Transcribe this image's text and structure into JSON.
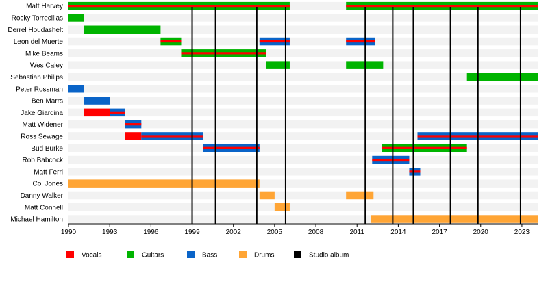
{
  "chart_data": {
    "type": "timeline",
    "title": "",
    "xlim": [
      1990,
      2024.2
    ],
    "x_ticks": [
      1990,
      1993,
      1996,
      1999,
      2002,
      2005,
      2008,
      2011,
      2014,
      2017,
      2020,
      2023
    ],
    "grid": "alternating row bands",
    "legend_position": "bottom",
    "colors": {
      "vocals": "#ff0000",
      "guitars": "#00b400",
      "bass": "#0a64c8",
      "drums": "#ffa535",
      "studio_album": "#000000",
      "band_light": "#f2f2f2"
    },
    "legend": [
      {
        "key": "vocals",
        "label": "Vocals"
      },
      {
        "key": "guitars",
        "label": "Guitars"
      },
      {
        "key": "bass",
        "label": "Bass"
      },
      {
        "key": "drums",
        "label": "Drums"
      },
      {
        "key": "studio_album",
        "label": "Studio album"
      }
    ],
    "studio_albums": [
      1999.0,
      2000.7,
      2003.7,
      2005.8,
      2011.6,
      2013.6,
      2015.1,
      2017.8,
      2019.8,
      2022.9
    ],
    "members": [
      {
        "name": "Matt Harvey",
        "spans": [
          {
            "role": "guitars",
            "accent": "vocals",
            "start": 1990,
            "end": 2006.1
          },
          {
            "role": "guitars",
            "accent": "vocals",
            "start": 2010.2,
            "end": 2024.2
          }
        ]
      },
      {
        "name": "Rocky Torrecillas",
        "spans": [
          {
            "role": "guitars",
            "start": 1990,
            "end": 1991.1
          }
        ]
      },
      {
        "name": "Derrel Houdashelt",
        "spans": [
          {
            "role": "guitars",
            "start": 1991.1,
            "end": 1996.7
          }
        ]
      },
      {
        "name": "Leon del Muerte",
        "spans": [
          {
            "role": "guitars",
            "accent": "vocals",
            "start": 1996.7,
            "end": 1998.2
          },
          {
            "role": "bass",
            "accent": "vocals",
            "start": 2003.9,
            "end": 2006.1
          },
          {
            "role": "bass",
            "accent": "vocals",
            "start": 2010.2,
            "end": 2012.3
          }
        ]
      },
      {
        "name": "Mike Beams",
        "spans": [
          {
            "role": "guitars",
            "accent": "vocals",
            "start": 1998.2,
            "end": 2004.4
          }
        ]
      },
      {
        "name": "Wes Caley",
        "spans": [
          {
            "role": "guitars",
            "start": 2004.4,
            "end": 2006.1
          },
          {
            "role": "guitars",
            "start": 2010.2,
            "end": 2012.9
          }
        ]
      },
      {
        "name": "Sebastian Philips",
        "spans": [
          {
            "role": "guitars",
            "start": 2019.0,
            "end": 2024.2
          }
        ]
      },
      {
        "name": "Peter Rossman",
        "spans": [
          {
            "role": "bass",
            "start": 1990,
            "end": 1991.1
          }
        ]
      },
      {
        "name": "Ben Marrs",
        "spans": [
          {
            "role": "bass",
            "start": 1991.1,
            "end": 1993.0
          }
        ]
      },
      {
        "name": "Jake Giardina",
        "spans": [
          {
            "role": "vocals",
            "start": 1991.1,
            "end": 1993.0
          },
          {
            "role": "bass",
            "accent": "vocals",
            "start": 1993.0,
            "end": 1994.1
          }
        ]
      },
      {
        "name": "Matt Widener",
        "spans": [
          {
            "role": "bass",
            "accent": "vocals",
            "start": 1994.1,
            "end": 1995.3
          }
        ]
      },
      {
        "name": "Ross Sewage",
        "spans": [
          {
            "role": "vocals",
            "start": 1994.1,
            "end": 1995.3
          },
          {
            "role": "bass",
            "accent": "vocals",
            "start": 1995.3,
            "end": 1999.8
          },
          {
            "role": "bass",
            "accent": "vocals",
            "start": 2015.4,
            "end": 2024.2
          }
        ]
      },
      {
        "name": "Bud Burke",
        "spans": [
          {
            "role": "bass",
            "accent": "vocals",
            "start": 1999.8,
            "end": 2003.9
          },
          {
            "role": "guitars",
            "accent": "vocals",
            "start": 2012.8,
            "end": 2019.0
          }
        ]
      },
      {
        "name": "Rob Babcock",
        "spans": [
          {
            "role": "bass",
            "accent": "vocals",
            "start": 2012.1,
            "end": 2014.8
          }
        ]
      },
      {
        "name": "Matt Ferri",
        "spans": [
          {
            "role": "bass",
            "accent": "vocals",
            "start": 2014.8,
            "end": 2015.6
          }
        ]
      },
      {
        "name": "Col Jones",
        "spans": [
          {
            "role": "drums",
            "start": 1990,
            "end": 2003.9
          }
        ]
      },
      {
        "name": "Danny Walker",
        "spans": [
          {
            "role": "drums",
            "start": 2003.9,
            "end": 2005.0
          },
          {
            "role": "drums",
            "start": 2010.2,
            "end": 2012.2
          }
        ]
      },
      {
        "name": "Matt Connell",
        "spans": [
          {
            "role": "drums",
            "start": 2005.0,
            "end": 2006.1
          }
        ]
      },
      {
        "name": "Michael Hamilton",
        "spans": [
          {
            "role": "drums",
            "start": 2012.0,
            "end": 2024.2
          }
        ]
      }
    ]
  }
}
